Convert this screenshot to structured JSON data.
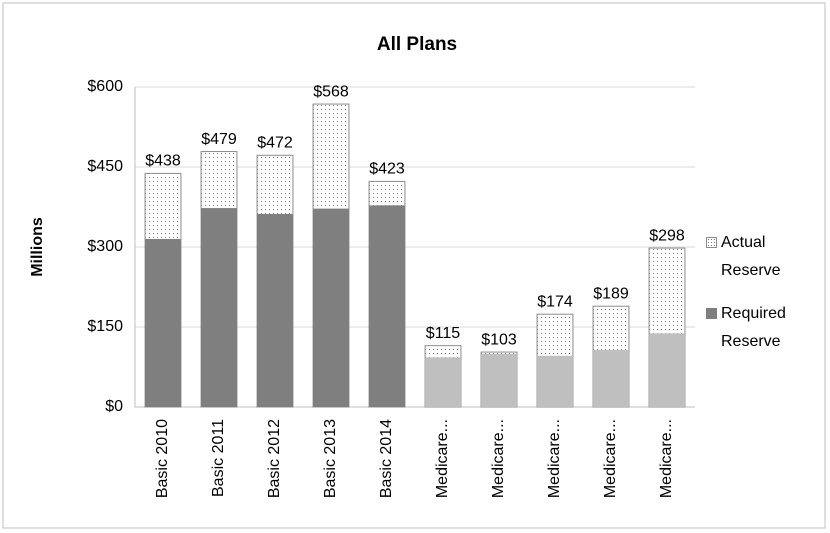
{
  "chart_data": {
    "type": "bar",
    "title": "All Plans",
    "ylabel": "Millions",
    "categories": [
      "Basic 2010",
      "Basic 2011",
      "Basic 2012",
      "Basic 2013",
      "Basic 2014",
      "Medicare...",
      "Medicare...",
      "Medicare...",
      "Medicare...",
      "Medicare..."
    ],
    "series": [
      {
        "name": "Actual Reserve",
        "color": "#ffffff",
        "pattern": "dots",
        "values": [
          438,
          479,
          472,
          568,
          423,
          115,
          103,
          174,
          189,
          298
        ],
        "value_labels": [
          "$438",
          "$479",
          "$472",
          "$568",
          "$423",
          "$115",
          "$103",
          "$174",
          "$189",
          "$298"
        ]
      },
      {
        "name": "Required Reserve",
        "color": "#7f7f7f",
        "colors": [
          "#7f7f7f",
          "#7f7f7f",
          "#7f7f7f",
          "#7f7f7f",
          "#7f7f7f",
          "#bfbfbf",
          "#bfbfbf",
          "#bfbfbf",
          "#bfbfbf",
          "#bfbfbf"
        ],
        "values": [
          315,
          373,
          362,
          372,
          378,
          93,
          100,
          96,
          107,
          138
        ]
      }
    ],
    "ylim": [
      0,
      600
    ],
    "yticks": [
      {
        "value": 0,
        "label": "$0"
      },
      {
        "value": 150,
        "label": "$150"
      },
      {
        "value": 300,
        "label": "$300"
      },
      {
        "value": 450,
        "label": "$450"
      },
      {
        "value": 600,
        "label": "$600"
      }
    ],
    "grid": true,
    "legend": "right"
  }
}
